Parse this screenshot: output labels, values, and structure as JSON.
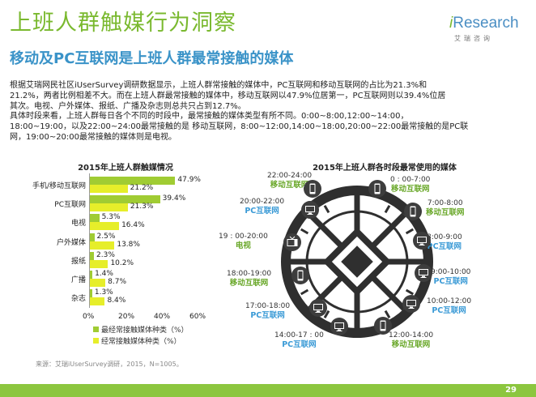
{
  "header": {
    "title": "上班人群触媒行为洞察",
    "subtitle": "移动及PC互联网是上班人群最常接触的媒体",
    "logo_brand": "iResearch",
    "logo_cn": "艾瑞咨询"
  },
  "description": {
    "line1": "根据艾瑞网民社区iUserSurvey调研数据显示，上班人群常接触的媒体中，PC互联网和移动互联网的占比为21.3%和",
    "line2": "21.2%，两者比例相差不大。而在上班人群最常接触的媒体中，移动互联网以47.9%位居第一，PC互联网则以39.4%位居",
    "line3": "其次。电视、户外媒体、报纸、广播及杂志则总共只占到12.7%。",
    "line4": "具体时段来看，上班人群每日各个不同的时段中，最常接触的媒体类型有所不同。0:00~8:00,12:00~14:00，",
    "line5": "18:00~19:00，以及22:00~24:00最常接触的是 移动互联网，8:00~12:00,14:00~18:00,20:00~22:00最常接触的是PC联",
    "line6": "网，19:00~20:00最常接触的媒体则是电视。"
  },
  "bar_chart_title": "2015年上班人群触媒情况",
  "clock_title": "2015年上班人群各时段最常使用的媒体",
  "chart_data": {
    "type": "bar",
    "orientation": "horizontal",
    "title": "2015年上班人群触媒情况",
    "categories": [
      "手机/移动互联网",
      "PC互联网",
      "电视",
      "户外媒体",
      "报纸",
      "广播",
      "杂志"
    ],
    "series": [
      {
        "name": "最经常接触媒体种类（%）",
        "color": "#a0cc33",
        "values": [
          47.9,
          39.4,
          5.3,
          2.5,
          2.3,
          1.4,
          1.3
        ]
      },
      {
        "name": "经常接触媒体种类（%）",
        "color": "#e6ee2a",
        "values": [
          21.2,
          21.3,
          16.4,
          13.8,
          10.2,
          8.7,
          8.4
        ]
      }
    ],
    "value_labels": [
      [
        "47.9%",
        "39.4%",
        "5.3%",
        "2.5%",
        "2.3%",
        "1.4%",
        "1.3%"
      ],
      [
        "21.2%",
        "21.3%",
        "16.4%",
        "13.8%",
        "10.2%",
        "8.7%",
        "8.4%"
      ]
    ],
    "xlim": [
      0,
      60
    ],
    "xticks": [
      "0%",
      "20%",
      "40%",
      "60%"
    ],
    "legend": "bottom"
  },
  "time_slots": [
    {
      "time": "22:00-24:00",
      "media": "移动互联网",
      "kind": "mobile"
    },
    {
      "time": "0 : 00-7:00",
      "media": "移动互联网",
      "kind": "mobile"
    },
    {
      "time": "20:00-22:00",
      "media": "PC互联网",
      "kind": "pc"
    },
    {
      "time": "7:00-8:00",
      "media": "移动互联网",
      "kind": "mobile"
    },
    {
      "time": "19 : 00-20:00",
      "media": "电视",
      "kind": "tv"
    },
    {
      "time": "8:00-9:00",
      "media": "PC互联网",
      "kind": "pc"
    },
    {
      "time": "18:00-19:00",
      "media": "移动互联网",
      "kind": "mobile"
    },
    {
      "time": "9:00-10:00",
      "media": "PC互联网",
      "kind": "pc"
    },
    {
      "time": "17:00-18:00",
      "media": "PC互联网",
      "kind": "pc"
    },
    {
      "time": "10:00-12:00",
      "media": "PC互联网",
      "kind": "pc"
    },
    {
      "time": "14:00-17 : 00",
      "media": "PC互联网",
      "kind": "pc"
    },
    {
      "time": "12:00-14:00",
      "media": "移动互联网",
      "kind": "mobile"
    }
  ],
  "source": "来源：艾瑞iUserSurvey调研，2015，N=1005。",
  "page_number": "29",
  "colors": {
    "title": "#7ab92f",
    "subtitle": "#3a93c8",
    "pc": "#3a9ad6",
    "mobile": "#6aa82a",
    "footer": "#8cc63f"
  }
}
